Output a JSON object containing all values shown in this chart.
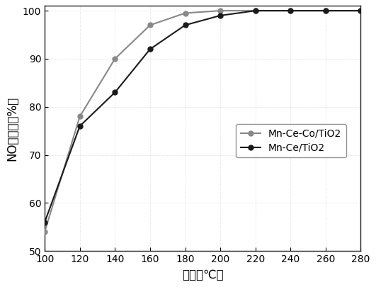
{
  "series1": {
    "label": "Mn-Ce/TiO2",
    "x": [
      100,
      120,
      140,
      160,
      180,
      200,
      220,
      240,
      260,
      280
    ],
    "y": [
      56,
      76,
      83,
      92,
      97,
      99,
      100,
      100,
      100,
      100
    ],
    "color": "#1a1a1a",
    "marker": "o",
    "markersize": 5,
    "linewidth": 1.5
  },
  "series2": {
    "label": "Mn-Ce-Co/TiO2",
    "x": [
      100,
      120,
      140,
      160,
      180,
      200,
      220,
      240,
      260,
      280
    ],
    "y": [
      54,
      78,
      90,
      97,
      99.5,
      100,
      100,
      100,
      100,
      100
    ],
    "color": "#888888",
    "marker": "o",
    "markersize": 5,
    "linewidth": 1.5
  },
  "xlabel": "温度（℃）",
  "ylabel": "NO去除率（%）",
  "xlim": [
    100,
    280
  ],
  "ylim": [
    50,
    101
  ],
  "xticks": [
    100,
    120,
    140,
    160,
    180,
    200,
    220,
    240,
    260,
    280
  ],
  "yticks": [
    50,
    60,
    70,
    80,
    90,
    100
  ],
  "legend_loc": "center right",
  "background_color": "#ffffff",
  "grid_color": "#cccccc",
  "label_fontsize": 12,
  "tick_fontsize": 10,
  "legend_fontsize": 10
}
